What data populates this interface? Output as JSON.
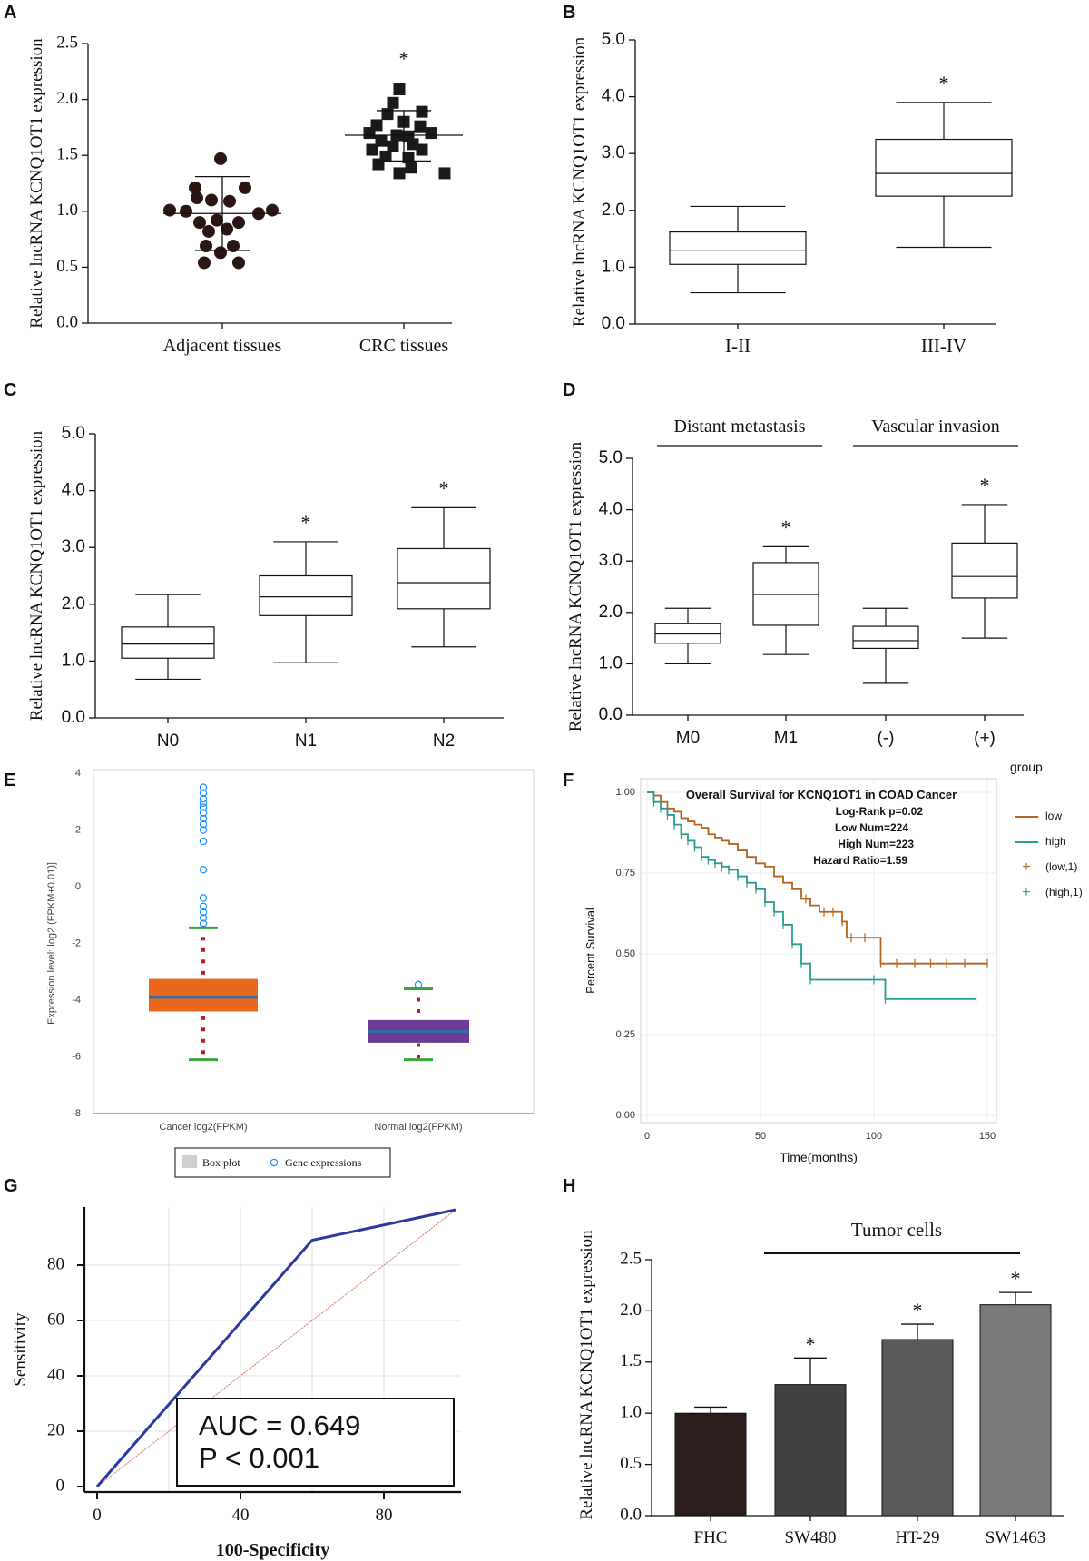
{
  "chart_data": [
    {
      "panel": "A",
      "type": "scatter",
      "ylabel": "Relative lncRNA KCNQ1OT1 expression",
      "ylim": [
        0,
        2.5
      ],
      "yticks": [
        "0.0",
        "0.5",
        "1.0",
        "1.5",
        "2.0",
        "2.5"
      ],
      "categories": [
        "Adjacent tissues",
        "CRC tissues"
      ],
      "series": [
        {
          "name": "Adjacent tissues",
          "marker": "circle",
          "mean": 0.98,
          "sd_low": 0.65,
          "sd_high": 1.31,
          "points": [
            [
              -2,
              1.47
            ],
            [
              -30,
              1.21
            ],
            [
              25,
              1.21
            ],
            [
              -28,
              1.12
            ],
            [
              -12,
              1.1
            ],
            [
              8,
              1.09
            ],
            [
              -58,
              1.01
            ],
            [
              -40,
              1.0
            ],
            [
              40,
              0.98
            ],
            [
              55,
              1.01
            ],
            [
              -25,
              0.9
            ],
            [
              -6,
              0.92
            ],
            [
              18,
              0.9
            ],
            [
              -15,
              0.82
            ],
            [
              5,
              0.84
            ],
            [
              -18,
              0.69
            ],
            [
              12,
              0.69
            ],
            [
              -2,
              0.63
            ],
            [
              -20,
              0.54
            ],
            [
              18,
              0.54
            ]
          ]
        },
        {
          "name": "CRC tissues",
          "marker": "square",
          "mean": 1.68,
          "sd_low": 1.45,
          "sd_high": 1.9,
          "points": [
            [
              -5,
              2.09
            ],
            [
              -12,
              1.97
            ],
            [
              -18,
              1.87
            ],
            [
              20,
              1.89
            ],
            [
              -30,
              1.77
            ],
            [
              0,
              1.8
            ],
            [
              18,
              1.76
            ],
            [
              -38,
              1.7
            ],
            [
              -8,
              1.68
            ],
            [
              30,
              1.7
            ],
            [
              5,
              1.67
            ],
            [
              -25,
              1.63
            ],
            [
              10,
              1.6
            ],
            [
              -35,
              1.55
            ],
            [
              -12,
              1.58
            ],
            [
              20,
              1.55
            ],
            [
              -20,
              1.49
            ],
            [
              5,
              1.48
            ],
            [
              -28,
              1.42
            ],
            [
              8,
              1.39
            ],
            [
              45,
              1.34
            ],
            [
              -5,
              1.34
            ]
          ]
        }
      ],
      "annotations": [
        {
          "category": "CRC tissues",
          "text": "*"
        }
      ]
    },
    {
      "panel": "B",
      "type": "box",
      "ylabel": "Relative lncRNA KCNQ1OT1 expression",
      "ylim": [
        0,
        5
      ],
      "yticks": [
        "0.0",
        "1.0",
        "2.0",
        "3.0",
        "4.0",
        "5.0"
      ],
      "categories": [
        "I-II",
        "III-IV"
      ],
      "boxes": [
        {
          "min": 0.55,
          "q1": 1.05,
          "median": 1.3,
          "q3": 1.62,
          "max": 2.07,
          "star": ""
        },
        {
          "min": 1.35,
          "q1": 2.25,
          "median": 2.65,
          "q3": 3.25,
          "max": 3.9,
          "star": "*"
        }
      ]
    },
    {
      "panel": "C",
      "type": "box",
      "ylabel": "Relative lncRNA KCNQ1OT1 expression",
      "ylim": [
        0,
        5
      ],
      "yticks": [
        "0.0",
        "1.0",
        "2.0",
        "3.0",
        "4.0",
        "5.0"
      ],
      "categories": [
        "N0",
        "N1",
        "N2"
      ],
      "boxes": [
        {
          "min": 0.68,
          "q1": 1.05,
          "median": 1.3,
          "q3": 1.6,
          "max": 2.17,
          "star": ""
        },
        {
          "min": 0.97,
          "q1": 1.8,
          "median": 2.13,
          "q3": 2.5,
          "max": 3.1,
          "star": "*"
        },
        {
          "min": 1.25,
          "q1": 1.92,
          "median": 2.38,
          "q3": 2.98,
          "max": 3.7,
          "star": "*"
        }
      ]
    },
    {
      "panel": "D",
      "type": "box",
      "ylabel": "Relative lncRNA KCNQ1OT1 expression",
      "ylim": [
        0,
        5
      ],
      "yticks": [
        "0.0",
        "1.0",
        "2.0",
        "3.0",
        "4.0",
        "5.0"
      ],
      "groups": [
        "Distant metastasis",
        "Vascular invasion"
      ],
      "categories": [
        "M0",
        "M1",
        "(-)",
        "(+)"
      ],
      "boxes": [
        {
          "min": 1.0,
          "q1": 1.4,
          "median": 1.58,
          "q3": 1.78,
          "max": 2.08,
          "star": ""
        },
        {
          "min": 1.18,
          "q1": 1.75,
          "median": 2.35,
          "q3": 2.97,
          "max": 3.28,
          "star": "*"
        },
        {
          "min": 0.62,
          "q1": 1.3,
          "median": 1.45,
          "q3": 1.73,
          "max": 2.08,
          "star": ""
        },
        {
          "min": 1.5,
          "q1": 2.28,
          "median": 2.7,
          "q3": 3.35,
          "max": 4.1,
          "star": "*"
        }
      ]
    },
    {
      "panel": "E",
      "type": "box",
      "ylabel": "Expression level: log2 (FPKM+0.01)]",
      "ylim": [
        -8,
        4
      ],
      "yticks": [
        "-8",
        "-6",
        "-4",
        "-2",
        "0",
        "2",
        "4"
      ],
      "categories": [
        "Cancer log2(FPKM)",
        "Normal log2(FPKM)"
      ],
      "legend": [
        "Box plot",
        "Gene expressions"
      ],
      "boxes": [
        {
          "color": "#e8671c",
          "min": -6.1,
          "q1": -4.4,
          "median": -3.9,
          "q3": -3.25,
          "max": -1.45,
          "outliers": [
            3.5,
            3.3,
            3.1,
            2.95,
            2.8,
            2.6,
            2.4,
            2.2,
            2.0,
            1.6,
            0.6,
            -0.4,
            -0.7,
            -0.9,
            -1.1,
            -1.3
          ]
        },
        {
          "color": "#6b3d94",
          "min": -6.1,
          "q1": -5.5,
          "median": -5.1,
          "q3": -4.7,
          "max": -3.6,
          "outliers": [
            -3.45
          ]
        }
      ]
    },
    {
      "panel": "F",
      "type": "line",
      "title": "Overall Survival for KCNQ1OT1 in COAD Cancer",
      "stats": [
        "Log-Rank p=0.02",
        "Low Num=224",
        "High Num=223",
        "Hazard Ratio=1.59"
      ],
      "xlabel": "Time(months)",
      "ylabel": "Percent Survival",
      "xlim": [
        0,
        150
      ],
      "ylim": [
        0,
        1
      ],
      "xticks": [
        "0",
        "50",
        "100",
        "150"
      ],
      "yticks": [
        "0.00",
        "0.25",
        "0.50",
        "0.75",
        "1.00"
      ],
      "legend_title": "group",
      "legend": [
        "low",
        "high",
        "(low,1)",
        "(high,1)"
      ],
      "series": [
        {
          "name": "low",
          "color": "#b5651d",
          "x": [
            0,
            3,
            6,
            9,
            12,
            15,
            18,
            21,
            24,
            27,
            30,
            33,
            36,
            40,
            44,
            48,
            52,
            56,
            60,
            64,
            68,
            72,
            76,
            80,
            84,
            86,
            88,
            90,
            100,
            103,
            150
          ],
          "y": [
            1.0,
            0.99,
            0.97,
            0.95,
            0.94,
            0.92,
            0.91,
            0.9,
            0.89,
            0.87,
            0.86,
            0.85,
            0.84,
            0.82,
            0.8,
            0.78,
            0.77,
            0.74,
            0.72,
            0.7,
            0.67,
            0.65,
            0.63,
            0.63,
            0.63,
            0.6,
            0.55,
            0.55,
            0.55,
            0.47,
            0.47
          ],
          "censor_x": [
            70,
            78,
            82,
            86,
            90,
            96,
            103,
            110,
            118,
            125,
            132,
            140,
            150
          ]
        },
        {
          "name": "high",
          "color": "#2a9d8f",
          "x": [
            0,
            3,
            6,
            9,
            12,
            15,
            18,
            21,
            24,
            27,
            30,
            33,
            36,
            40,
            44,
            48,
            52,
            56,
            60,
            64,
            68,
            72,
            100,
            105,
            145
          ],
          "y": [
            1.0,
            0.97,
            0.95,
            0.93,
            0.9,
            0.87,
            0.85,
            0.83,
            0.8,
            0.79,
            0.78,
            0.77,
            0.76,
            0.74,
            0.72,
            0.7,
            0.66,
            0.63,
            0.59,
            0.53,
            0.47,
            0.42,
            0.42,
            0.36,
            0.36
          ]
        }
      ]
    },
    {
      "panel": "G",
      "type": "line",
      "xlabel": "100-Specificity",
      "ylabel": "Sensitivity",
      "xlim": [
        0,
        100
      ],
      "ylim": [
        0,
        100
      ],
      "xticks": [
        "0",
        "40",
        "80"
      ],
      "yticks": [
        "0",
        "20",
        "40",
        "60",
        "80"
      ],
      "roc": {
        "x": [
          0,
          60,
          100
        ],
        "y": [
          0,
          89,
          100
        ]
      },
      "reference": {
        "x": [
          0,
          100
        ],
        "y": [
          0,
          100
        ]
      },
      "annotation": [
        "AUC = 0.649",
        "P < 0.001"
      ]
    },
    {
      "panel": "H",
      "type": "bar",
      "ylabel": "Relative lncRNA KCNQ1OT1 expression",
      "ylim": [
        0,
        2.5
      ],
      "yticks": [
        "0.0",
        "0.5",
        "1.0",
        "1.5",
        "2.0",
        "2.5"
      ],
      "group_label": "Tumor cells",
      "categories": [
        "FHC",
        "SW480",
        "HT-29",
        "SW1463"
      ],
      "values": [
        1.0,
        1.28,
        1.72,
        2.06
      ],
      "errors": [
        0.06,
        0.26,
        0.15,
        0.12
      ],
      "colors": [
        "#2b1d1c",
        "#424242",
        "#5a5a5a",
        "#7a7a78"
      ],
      "stars": [
        "",
        "*",
        "*",
        "*"
      ]
    }
  ]
}
